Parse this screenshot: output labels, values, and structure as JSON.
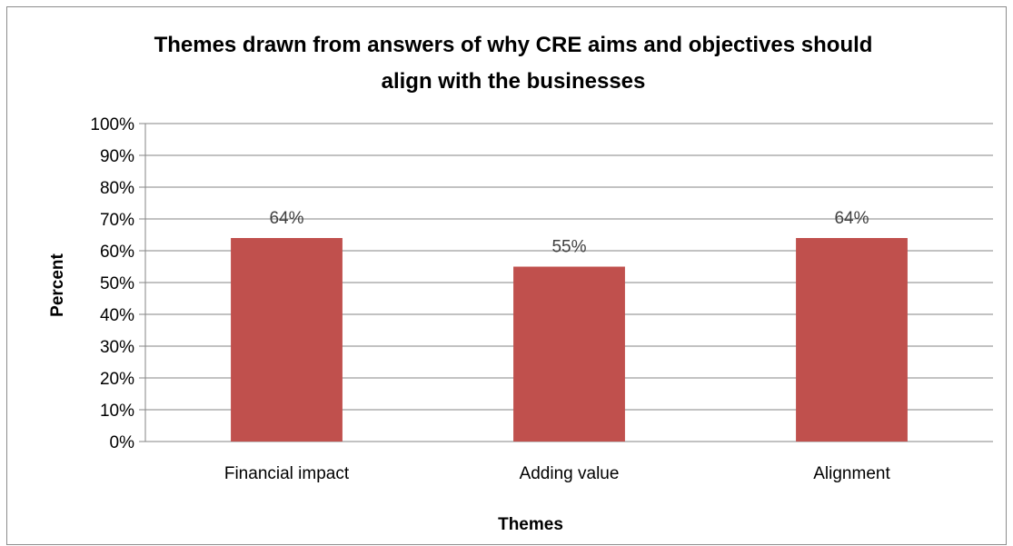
{
  "chart_data": {
    "type": "bar",
    "title_lines": [
      "Themes drawn from answers of why CRE aims and objectives should",
      "align with the businesses"
    ],
    "xlabel": "Themes",
    "ylabel": "Percent",
    "categories": [
      "Financial impact",
      "Adding value",
      "Alignment"
    ],
    "values": [
      64,
      55,
      64
    ],
    "data_labels": [
      "64%",
      "55%",
      "64%"
    ],
    "ylim": [
      0,
      100
    ],
    "yticks": [
      "0%",
      "10%",
      "20%",
      "30%",
      "40%",
      "50%",
      "60%",
      "70%",
      "80%",
      "90%",
      "100%"
    ],
    "grid": true,
    "legend": "none",
    "bar_color": "#c0504d",
    "gridline_color": "#868686"
  }
}
